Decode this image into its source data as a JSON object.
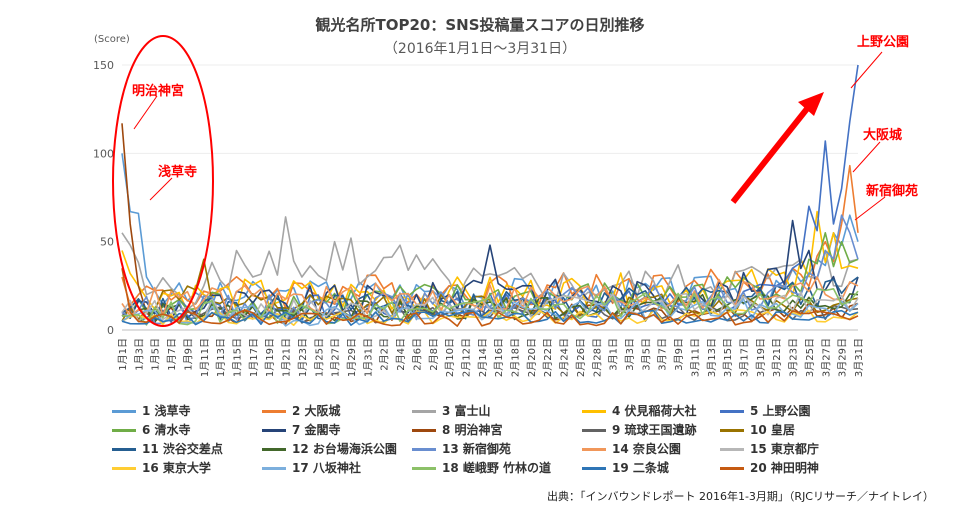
{
  "title": "観光名所TOP20：SNS投稿量スコアの日別推移",
  "subtitle": "（2016年1月1日～3月31日）",
  "source": "出典：「インバウンドレポート 2016年1-3月期」（RJCリサーチ／ナイトレイ）",
  "annotations": {
    "meiji": "明治神宮",
    "sensoji": "浅草寺",
    "ueno": "上野公園",
    "osaka": "大阪城",
    "shinjuku": "新宿御苑"
  },
  "colors": {
    "highlight": "#ff0000",
    "axis": "#bfbfbf"
  },
  "chart_data": {
    "type": "line",
    "ylabel": "(Score)",
    "ylim": [
      0,
      150
    ],
    "yticks": [
      0,
      50,
      100,
      150
    ],
    "x_tick_labels": [
      "1月1日",
      "1月3日",
      "1月5日",
      "1月7日",
      "1月9日",
      "1月11日",
      "1月13日",
      "1月15日",
      "1月17日",
      "1月19日",
      "1月21日",
      "1月23日",
      "1月25日",
      "1月27日",
      "1月29日",
      "1月31日",
      "2月2日",
      "2月4日",
      "2月6日",
      "2月8日",
      "2月10日",
      "2月12日",
      "2月14日",
      "2月16日",
      "2月18日",
      "2月20日",
      "2月22日",
      "2月24日",
      "2月26日",
      "2月28日",
      "3月1日",
      "3月3日",
      "3月5日",
      "3月7日",
      "3月9日",
      "3月11日",
      "3月13日",
      "3月15日",
      "3月17日",
      "3月19日",
      "3月21日",
      "3月23日",
      "3月25日",
      "3月27日",
      "3月29日",
      "3月31日"
    ],
    "num_days": 91,
    "series": [
      {
        "name": "1 浅草寺",
        "color": "#5b9bd5",
        "anchors": [
          [
            0,
            100
          ],
          [
            1,
            67
          ],
          [
            2,
            66
          ],
          [
            3,
            30
          ],
          [
            4,
            22
          ],
          [
            6,
            20
          ],
          [
            10,
            18
          ],
          [
            20,
            22
          ],
          [
            40,
            25
          ],
          [
            60,
            22
          ],
          [
            80,
            28
          ],
          [
            85,
            40
          ],
          [
            87,
            55
          ],
          [
            89,
            65
          ],
          [
            90,
            50
          ]
        ],
        "base": 16,
        "amp": 9
      },
      {
        "name": "2 大阪城",
        "color": "#ed7d31",
        "anchors": [
          [
            0,
            30
          ],
          [
            2,
            20
          ],
          [
            10,
            22
          ],
          [
            40,
            25
          ],
          [
            70,
            28
          ],
          [
            82,
            35
          ],
          [
            86,
            50
          ],
          [
            88,
            60
          ],
          [
            89,
            93
          ],
          [
            90,
            55
          ]
        ],
        "base": 18,
        "amp": 10
      },
      {
        "name": "3 富士山",
        "color": "#a5a5a5",
        "anchors": [
          [
            0,
            55
          ],
          [
            1,
            48
          ],
          [
            3,
            20
          ],
          [
            10,
            25
          ],
          [
            14,
            45
          ],
          [
            16,
            30
          ],
          [
            20,
            64
          ],
          [
            22,
            30
          ],
          [
            26,
            50
          ],
          [
            28,
            52
          ],
          [
            30,
            30
          ],
          [
            34,
            48
          ],
          [
            40,
            28
          ],
          [
            60,
            25
          ],
          [
            80,
            35
          ],
          [
            86,
            45
          ],
          [
            90,
            40
          ]
        ],
        "base": 20,
        "amp": 12
      },
      {
        "name": "4 伏見稲荷大社",
        "color": "#ffc000",
        "anchors": [
          [
            0,
            45
          ],
          [
            2,
            25
          ],
          [
            10,
            20
          ],
          [
            40,
            22
          ],
          [
            75,
            28
          ],
          [
            83,
            40
          ],
          [
            85,
            67
          ],
          [
            87,
            55
          ],
          [
            90,
            35
          ]
        ],
        "base": 16,
        "amp": 10
      },
      {
        "name": "5 上野公園",
        "color": "#4472c4",
        "anchors": [
          [
            0,
            10
          ],
          [
            20,
            12
          ],
          [
            40,
            15
          ],
          [
            70,
            18
          ],
          [
            80,
            25
          ],
          [
            82,
            35
          ],
          [
            84,
            70
          ],
          [
            86,
            107
          ],
          [
            87,
            60
          ],
          [
            88,
            80
          ],
          [
            89,
            118
          ],
          [
            90,
            150
          ]
        ],
        "base": 10,
        "amp": 8
      },
      {
        "name": "6 清水寺",
        "color": "#70ad47",
        "anchors": [
          [
            0,
            5
          ],
          [
            10,
            15
          ],
          [
            30,
            20
          ],
          [
            50,
            22
          ],
          [
            70,
            25
          ],
          [
            84,
            40
          ],
          [
            86,
            55
          ],
          [
            88,
            50
          ],
          [
            90,
            40
          ]
        ],
        "base": 12,
        "amp": 9
      },
      {
        "name": "7 金閣寺",
        "color": "#264478",
        "anchors": [
          [
            0,
            10
          ],
          [
            20,
            15
          ],
          [
            40,
            20
          ],
          [
            45,
            48
          ],
          [
            50,
            25
          ],
          [
            70,
            22
          ],
          [
            80,
            35
          ],
          [
            82,
            62
          ],
          [
            84,
            45
          ],
          [
            90,
            30
          ]
        ],
        "base": 12,
        "amp": 10
      },
      {
        "name": "8 明治神宮",
        "color": "#9e480e",
        "anchors": [
          [
            0,
            117
          ],
          [
            1,
            60
          ],
          [
            2,
            25
          ],
          [
            3,
            10
          ],
          [
            10,
            8
          ],
          [
            40,
            10
          ],
          [
            80,
            12
          ],
          [
            90,
            15
          ]
        ],
        "base": 7,
        "amp": 5
      },
      {
        "name": "9 琉球王国遺跡",
        "color": "#636363",
        "anchors": [
          [
            0,
            8
          ],
          [
            40,
            10
          ],
          [
            90,
            12
          ]
        ],
        "base": 7,
        "amp": 5
      },
      {
        "name": "10 皇居",
        "color": "#997300",
        "anchors": [
          [
            0,
            5
          ],
          [
            10,
            40
          ],
          [
            12,
            15
          ],
          [
            40,
            15
          ],
          [
            90,
            18
          ]
        ],
        "base": 10,
        "amp": 7
      },
      {
        "name": "11 渋谷交差点",
        "color": "#255e91",
        "anchors": [
          [
            0,
            10
          ],
          [
            40,
            15
          ],
          [
            80,
            25
          ],
          [
            90,
            30
          ]
        ],
        "base": 11,
        "amp": 8
      },
      {
        "name": "12 お台場海浜公園",
        "color": "#43682b",
        "anchors": [
          [
            0,
            8
          ],
          [
            40,
            12
          ],
          [
            90,
            20
          ]
        ],
        "base": 9,
        "amp": 6
      },
      {
        "name": "13 新宿御苑",
        "color": "#698ed0",
        "anchors": [
          [
            0,
            10
          ],
          [
            40,
            15
          ],
          [
            80,
            25
          ],
          [
            86,
            45
          ],
          [
            88,
            65
          ],
          [
            89,
            55
          ],
          [
            90,
            40
          ]
        ],
        "base": 11,
        "amp": 8
      },
      {
        "name": "14 奈良公園",
        "color": "#f1975a",
        "anchors": [
          [
            0,
            15
          ],
          [
            40,
            20
          ],
          [
            70,
            22
          ],
          [
            85,
            30
          ],
          [
            90,
            25
          ]
        ],
        "base": 14,
        "amp": 9
      },
      {
        "name": "15 東京都庁",
        "color": "#b7b7b7",
        "anchors": [
          [
            0,
            10
          ],
          [
            40,
            14
          ],
          [
            90,
            18
          ]
        ],
        "base": 10,
        "amp": 7
      },
      {
        "name": "16 東京大学",
        "color": "#ffcd33",
        "anchors": [
          [
            0,
            5
          ],
          [
            40,
            8
          ],
          [
            90,
            10
          ]
        ],
        "base": 5,
        "amp": 4
      },
      {
        "name": "17 八坂神社",
        "color": "#7cafdd",
        "anchors": [
          [
            0,
            5
          ],
          [
            40,
            10
          ],
          [
            90,
            15
          ]
        ],
        "base": 8,
        "amp": 6
      },
      {
        "name": "18 嵯峨野 竹林の道",
        "color": "#8cc168",
        "anchors": [
          [
            0,
            8
          ],
          [
            40,
            12
          ],
          [
            90,
            22
          ]
        ],
        "base": 9,
        "amp": 7
      },
      {
        "name": "19 二条城",
        "color": "#2e75b6",
        "anchors": [
          [
            0,
            5
          ],
          [
            40,
            8
          ],
          [
            90,
            10
          ]
        ],
        "base": 5,
        "amp": 4
      },
      {
        "name": "20 神田明神",
        "color": "#c55a11",
        "anchors": [
          [
            0,
            35
          ],
          [
            1,
            10
          ],
          [
            40,
            6
          ],
          [
            90,
            8
          ]
        ],
        "base": 5,
        "amp": 4
      }
    ]
  }
}
